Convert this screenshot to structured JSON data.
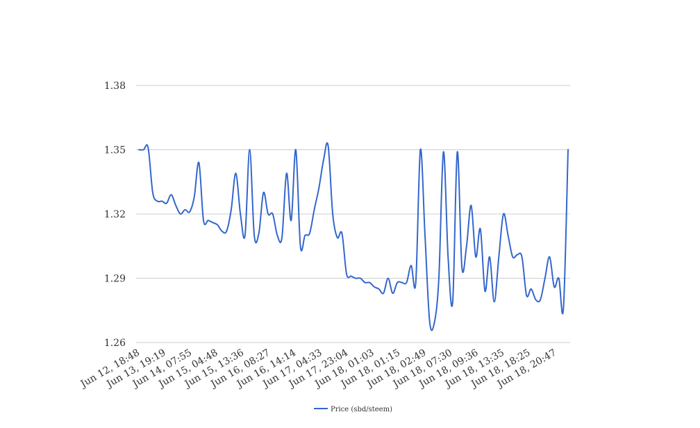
{
  "chart_data": {
    "type": "line",
    "title": "",
    "xlabel": "",
    "ylabel": "",
    "ylim": [
      1.26,
      1.38
    ],
    "y_ticks": [
      "1.26",
      "1.29",
      "1.32",
      "1.35",
      "1.38"
    ],
    "grid": true,
    "legend_position": "bottom",
    "x_tick_labels": [
      "Jun 12, 18:48",
      "Jun 13, 19:19",
      "Jun 14, 07:55",
      "Jun 15, 04:48",
      "Jun 15, 13:36",
      "Jun 16, 08:27",
      "Jun 16, 14:14",
      "Jun 17, 04:33",
      "Jun 17, 23:04",
      "Jun 18, 01:03",
      "Jun 18, 01:15",
      "Jun 18, 02:49",
      "Jun 18, 07:30",
      "Jun 18, 09:36",
      "Jun 18, 13:35",
      "Jun 18, 18:25",
      "Jun 18, 20:47"
    ],
    "series": [
      {
        "name": "Price (sbd/steem)",
        "color": "#3366cc",
        "values": [
          1.35,
          1.35,
          1.351,
          1.33,
          1.326,
          1.326,
          1.325,
          1.329,
          1.324,
          1.32,
          1.322,
          1.321,
          1.328,
          1.344,
          1.317,
          1.317,
          1.316,
          1.315,
          1.312,
          1.312,
          1.322,
          1.339,
          1.32,
          1.31,
          1.35,
          1.31,
          1.311,
          1.33,
          1.32,
          1.32,
          1.31,
          1.309,
          1.339,
          1.317,
          1.35,
          1.305,
          1.31,
          1.311,
          1.322,
          1.332,
          1.345,
          1.352,
          1.32,
          1.309,
          1.311,
          1.292,
          1.291,
          1.29,
          1.29,
          1.288,
          1.288,
          1.286,
          1.285,
          1.283,
          1.29,
          1.283,
          1.288,
          1.288,
          1.288,
          1.296,
          1.288,
          1.35,
          1.31,
          1.27,
          1.269,
          1.29,
          1.349,
          1.3,
          1.279,
          1.349,
          1.295,
          1.305,
          1.324,
          1.3,
          1.313,
          1.284,
          1.3,
          1.279,
          1.3,
          1.32,
          1.31,
          1.3,
          1.301,
          1.3,
          1.282,
          1.285,
          1.28,
          1.28,
          1.29,
          1.3,
          1.286,
          1.29,
          1.276,
          1.35
        ]
      }
    ]
  }
}
